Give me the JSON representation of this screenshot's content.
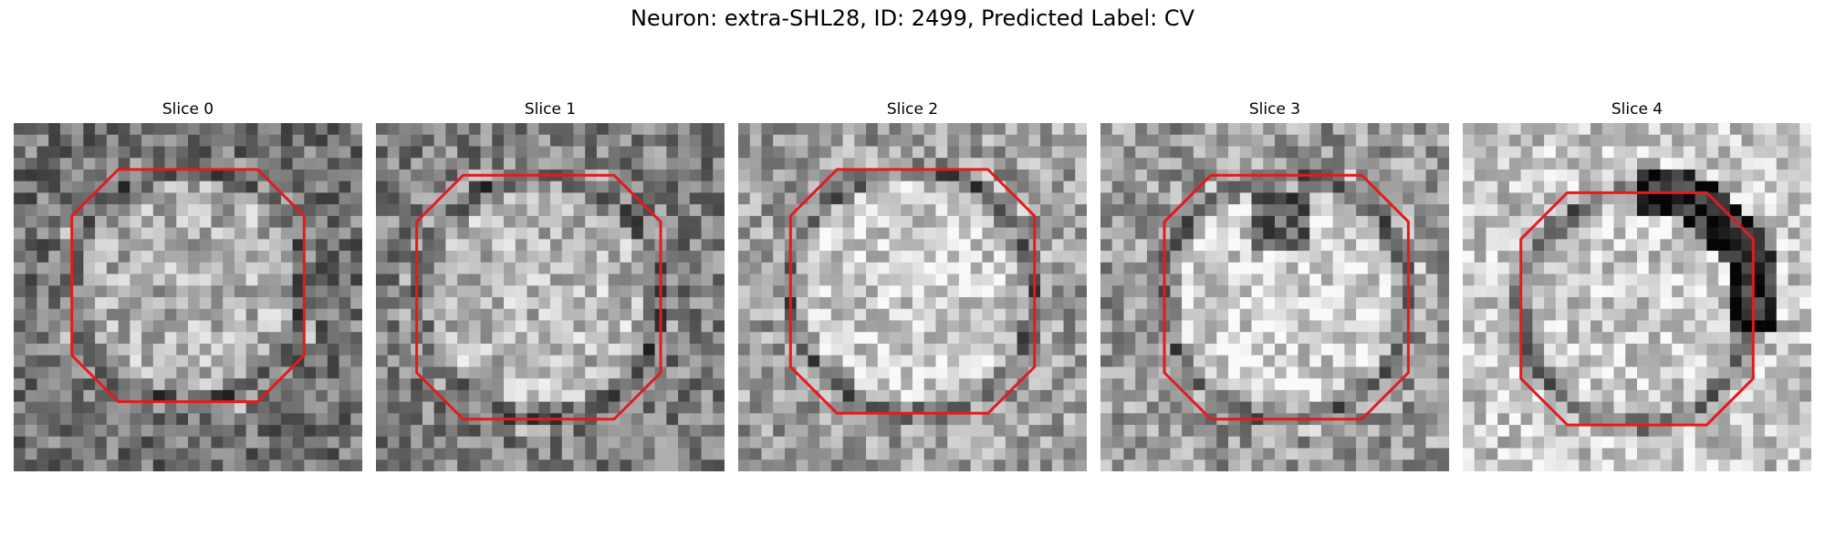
{
  "figure": {
    "title": "Neuron: extra-SHL28, ID: 2499, Predicted Label: CV"
  },
  "slices": [
    {
      "label": "Slice 0",
      "background_level": 0.45,
      "interior_level": 0.68
    },
    {
      "label": "Slice 1",
      "background_level": 0.5,
      "interior_level": 0.72
    },
    {
      "label": "Slice 2",
      "background_level": 0.62,
      "interior_level": 0.8
    },
    {
      "label": "Slice 3",
      "background_level": 0.6,
      "interior_level": 0.82
    },
    {
      "label": "Slice 4",
      "background_level": 0.78,
      "interior_level": 0.8
    }
  ],
  "contour_color": "#e41a1c"
}
